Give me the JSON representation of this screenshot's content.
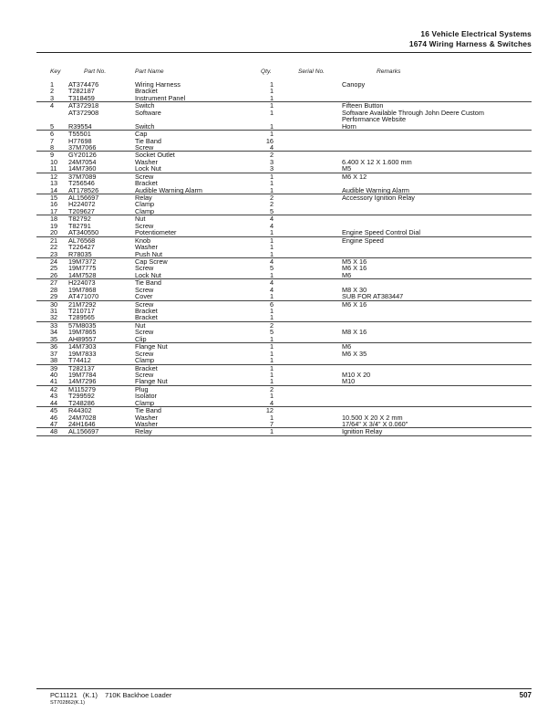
{
  "header": {
    "section": "16 Vehicle Electrical Systems",
    "subsection": "1674 Wiring Harness & Switches"
  },
  "columns": {
    "key": "Key",
    "part_no": "Part No.",
    "part_name": "Part Name",
    "qty": "Qty.",
    "serial_no": "Serial No.",
    "remarks": "Remarks"
  },
  "groups": [
    [
      [
        "1",
        "AT374476",
        "Wiring Harness",
        "1",
        "Canopy"
      ],
      [
        "2",
        "T282187",
        "Bracket",
        "1",
        ""
      ],
      [
        "3",
        "T318459",
        "Instrument Panel",
        "1",
        ""
      ]
    ],
    [
      [
        "4",
        "AT372918",
        "Switch",
        "1",
        "Fifteen Button"
      ],
      [
        "",
        "AT372908",
        "Software",
        "1",
        "Software Available Through John Deere Custom"
      ],
      [
        "",
        "",
        "",
        "",
        "  Performance Website"
      ],
      [
        "5",
        "R39554",
        "Switch",
        "1",
        "Horn"
      ]
    ],
    [
      [
        "6",
        "T55501",
        "Cap",
        "1",
        ""
      ],
      [
        "7",
        "H77698",
        "Tie Band",
        "16",
        ""
      ],
      [
        "8",
        "37M7066",
        "Screw",
        "4",
        ""
      ]
    ],
    [
      [
        "9",
        "GY20126",
        "Socket Outlet",
        "2",
        ""
      ],
      [
        "10",
        "24M7054",
        "Washer",
        "3",
        "6.400 X 12 X 1.600 mm"
      ],
      [
        "11",
        "14M7360",
        "Lock Nut",
        "3",
        "M5"
      ]
    ],
    [
      [
        "12",
        "37M7089",
        "Screw",
        "1",
        "M6 X 12"
      ],
      [
        "13",
        "T256546",
        "Bracket",
        "1",
        ""
      ],
      [
        "14",
        "AT178526",
        "Audible Warning Alarm",
        "1",
        "Audible Warning Alarm"
      ]
    ],
    [
      [
        "15",
        "AL156697",
        "Relay",
        "2",
        "Accessory Ignition Relay"
      ],
      [
        "16",
        "H224072",
        "Clamp",
        "2",
        ""
      ],
      [
        "17",
        "T209627",
        "Clamp",
        "5",
        ""
      ]
    ],
    [
      [
        "18",
        "T82792",
        "Nut",
        "4",
        ""
      ],
      [
        "19",
        "T82791",
        "Screw",
        "4",
        ""
      ],
      [
        "20",
        "AT340550",
        "Potentiometer",
        "1",
        "Engine Speed Control Dial"
      ]
    ],
    [
      [
        "21",
        "AL76568",
        "Knob",
        "1",
        "Engine Speed"
      ],
      [
        "22",
        "T226427",
        "Washer",
        "1",
        ""
      ],
      [
        "23",
        "R78035",
        "Push Nut",
        "1",
        ""
      ]
    ],
    [
      [
        "24",
        "19M7372",
        "Cap Screw",
        "4",
        "M5 X 16"
      ],
      [
        "25",
        "19M7775",
        "Screw",
        "5",
        "M6 X 16"
      ],
      [
        "26",
        "14M7528",
        "Lock Nut",
        "1",
        "M6"
      ]
    ],
    [
      [
        "27",
        "H224073",
        "Tie Band",
        "4",
        ""
      ],
      [
        "28",
        "19M7868",
        "Screw",
        "4",
        "M8 X 30"
      ],
      [
        "29",
        "AT471070",
        "Cover",
        "1",
        "SUB FOR AT383447"
      ]
    ],
    [
      [
        "30",
        "21M7292",
        "Screw",
        "6",
        "M6 X 16"
      ],
      [
        "31",
        "T210717",
        "Bracket",
        "1",
        ""
      ],
      [
        "32",
        "T289565",
        "Bracket",
        "1",
        ""
      ]
    ],
    [
      [
        "33",
        "57M8035",
        "Nut",
        "2",
        ""
      ],
      [
        "34",
        "19M7865",
        "Screw",
        "5",
        "M8 X 16"
      ],
      [
        "35",
        "AH89557",
        "Clip",
        "1",
        ""
      ]
    ],
    [
      [
        "36",
        "14M7303",
        "Flange Nut",
        "1",
        "M6"
      ],
      [
        "37",
        "19M7833",
        "Screw",
        "1",
        "M6 X 35"
      ],
      [
        "38",
        "T74412",
        "Clamp",
        "1",
        ""
      ]
    ],
    [
      [
        "39",
        "T282137",
        "Bracket",
        "1",
        ""
      ],
      [
        "40",
        "19M7784",
        "Screw",
        "1",
        "M10 X 20"
      ],
      [
        "41",
        "14M7296",
        "Flange Nut",
        "1",
        "M10"
      ]
    ],
    [
      [
        "42",
        "M115279",
        "Plug",
        "2",
        ""
      ],
      [
        "43",
        "T299592",
        "Isolator",
        "1",
        ""
      ],
      [
        "44",
        "T248286",
        "Clamp",
        "4",
        ""
      ]
    ],
    [
      [
        "45",
        "R44302",
        "Tie Band",
        "12",
        ""
      ],
      [
        "46",
        "24M7028",
        "Washer",
        "1",
        "10.500 X 20 X 2 mm"
      ],
      [
        "47",
        "24H1646",
        "Washer",
        "7",
        "17/64\" X 3/4\" X 0.060\""
      ]
    ],
    [
      [
        "48",
        "AL156697",
        "Relay",
        "1",
        "Ignition Relay"
      ]
    ]
  ],
  "footer": {
    "catalog": "PC11121",
    "revision": "(K.1)",
    "model": "710K Backhoe Loader",
    "code": "ST702862(K.1)",
    "page": "507"
  }
}
